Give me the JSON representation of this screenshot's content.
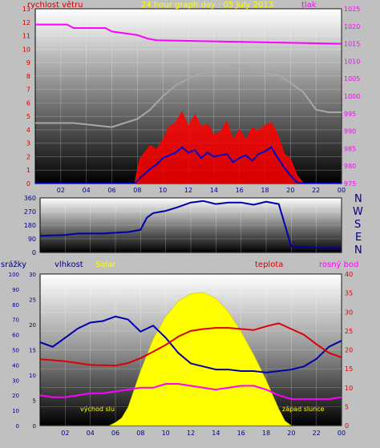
{
  "title": "24 hour graph day : 05 July 2013",
  "labels": {
    "wind_speed": "rychlost větru",
    "pressure": "tlak",
    "rain": "srážky",
    "humidity": "vlhkost",
    "solar": "Solar",
    "temperature": "teplota",
    "dewpoint": "rosný bod",
    "sunrise": "východ slu",
    "sunset": "západ slunce"
  },
  "compass": [
    "N",
    "W",
    "S",
    "E",
    "N"
  ],
  "colors": {
    "pressure": "#ff00ff",
    "gust": "#a8a8a8",
    "wind_max": "#ff0000",
    "wind_avg": "#0000cc",
    "direction": "#0000aa",
    "temperature": "#dd0000",
    "humidity": "#0000aa",
    "dewpoint": "#ff00ff",
    "solar": "#ffff00",
    "title": "#ffff00",
    "wind_label": "#cc0000",
    "rain_label": "#000080"
  },
  "chart_data": [
    {
      "type": "line",
      "name": "wind-pressure",
      "x_ticks": [
        "02",
        "04",
        "06",
        "08",
        "10",
        "12",
        "14",
        "16",
        "18",
        "20",
        "22",
        "00"
      ],
      "y_left_ticks": [
        "0",
        "1",
        "2",
        "3",
        "4",
        "5",
        "6",
        "7",
        "8",
        "9",
        "10",
        "11",
        "12",
        "13"
      ],
      "y_right_ticks": [
        "975",
        "980",
        "985",
        "990",
        "995",
        "1000",
        "1005",
        "1010",
        "1015",
        "1020",
        "1025"
      ],
      "ylim_left": [
        0,
        13
      ],
      "ylim_right": [
        975,
        1025
      ],
      "xlim": [
        0,
        24
      ],
      "series": [
        {
          "key": "pressure",
          "axis": "right",
          "x": [
            0,
            2.5,
            3,
            5.5,
            6,
            8,
            8.8,
            9.5,
            24
          ],
          "values": [
            1020.5,
            1020.5,
            1019.5,
            1019.5,
            1018.5,
            1017.5,
            1016.5,
            1016,
            1015
          ]
        },
        {
          "key": "gust",
          "axis": "left",
          "x": [
            0,
            1,
            3,
            6,
            7,
            8,
            9,
            10,
            11,
            12,
            13,
            14,
            15,
            16,
            17,
            18,
            19,
            20,
            21,
            22,
            23,
            24
          ],
          "values": [
            4.5,
            4.5,
            4.5,
            4.2,
            4.5,
            4.8,
            5.5,
            6.5,
            7.3,
            7.8,
            8.2,
            8.4,
            8.6,
            8.8,
            8.6,
            8.2,
            8.1,
            7.5,
            6.8,
            5.5,
            5.3,
            5.3
          ]
        },
        {
          "key": "wind_max",
          "axis": "left",
          "x": [
            0,
            7.8,
            8.2,
            9,
            9.5,
            10,
            10.5,
            11,
            11.5,
            12,
            12.5,
            13,
            13.5,
            14,
            14.5,
            15,
            15.5,
            16,
            16.5,
            17,
            17.5,
            18,
            18.5,
            19,
            19.5,
            20,
            20.5,
            21,
            24
          ],
          "values": [
            0,
            0,
            1.8,
            2.8,
            2.5,
            3.2,
            4.2,
            4.5,
            5.3,
            4.2,
            5.1,
            4.2,
            4.4,
            3.6,
            3.8,
            4.6,
            3.2,
            4.0,
            3.2,
            4.1,
            3.9,
            4.3,
            4.5,
            3.6,
            2.2,
            1.8,
            0.6,
            0,
            0
          ]
        },
        {
          "key": "wind_avg",
          "axis": "left",
          "x": [
            0,
            7.8,
            8.2,
            9,
            9.5,
            10,
            10.5,
            11,
            11.5,
            12,
            12.5,
            13,
            13.5,
            14,
            14.5,
            15,
            15.5,
            16,
            16.5,
            17,
            17.5,
            18,
            18.5,
            19,
            19.5,
            20,
            20.5,
            21,
            24
          ],
          "values": [
            0,
            0,
            0.4,
            1.1,
            1.4,
            1.9,
            2.1,
            2.3,
            2.7,
            2.3,
            2.5,
            1.9,
            2.3,
            2.0,
            2.1,
            2.2,
            1.6,
            1.9,
            2.1,
            1.7,
            2.2,
            2.4,
            2.7,
            1.9,
            1.2,
            0.6,
            0.1,
            0,
            0
          ]
        }
      ]
    },
    {
      "type": "line",
      "name": "wind-direction",
      "y_ticks": [
        "0",
        "90",
        "180",
        "270",
        "360"
      ],
      "ylim": [
        0,
        360
      ],
      "xlim": [
        0,
        24
      ],
      "series": [
        {
          "key": "direction",
          "x": [
            0,
            2,
            3,
            5,
            6,
            7,
            8,
            8.5,
            9,
            10,
            11,
            12,
            13,
            14,
            15,
            16,
            17,
            18,
            19,
            20,
            21,
            22,
            24
          ],
          "values": [
            110,
            115,
            125,
            125,
            130,
            135,
            150,
            230,
            260,
            275,
            300,
            330,
            340,
            320,
            330,
            330,
            315,
            335,
            320,
            40,
            35,
            30,
            30
          ]
        }
      ]
    },
    {
      "type": "area",
      "name": "temperature-humidity",
      "x_ticks": [
        "02",
        "04",
        "06",
        "08",
        "10",
        "12",
        "14",
        "16",
        "18",
        "20",
        "22",
        "00"
      ],
      "y_humidity_ticks": [
        "0",
        "10",
        "20",
        "30",
        "40",
        "50",
        "60",
        "70",
        "80",
        "90",
        "100"
      ],
      "y_rain_ticks": [
        "0",
        "5",
        "10",
        "15",
        "20",
        "25",
        "30"
      ],
      "y_right_ticks": [
        "0",
        "5",
        "10",
        "15",
        "20",
        "25",
        "30",
        "35",
        "40"
      ],
      "ylim_temp": [
        0,
        40
      ],
      "ylim_humidity": [
        0,
        100
      ],
      "xlim": [
        0,
        24
      ],
      "series": [
        {
          "key": "temperature",
          "x": [
            0,
            2,
            4,
            6,
            7,
            8,
            9,
            10,
            11,
            12,
            13,
            14,
            15,
            16,
            17,
            18,
            19,
            20,
            21,
            22,
            23,
            24
          ],
          "values": [
            17.5,
            17,
            16,
            15.8,
            16.5,
            17.8,
            19.5,
            21.3,
            23.5,
            25,
            25.5,
            25.8,
            25.8,
            25.5,
            25.2,
            26.2,
            27,
            25.5,
            24,
            21.5,
            19.2,
            18
          ]
        },
        {
          "key": "humidity",
          "x": [
            0,
            1,
            2,
            3,
            4,
            5,
            6,
            7,
            8,
            9,
            10,
            11,
            12,
            13,
            14,
            15,
            16,
            17,
            18,
            19,
            20,
            21,
            22,
            23,
            24
          ],
          "values": [
            55,
            52,
            58,
            64,
            68,
            69,
            72,
            70,
            62,
            66,
            58,
            48,
            41,
            39,
            37,
            37,
            36,
            36,
            35,
            36,
            37,
            39,
            44,
            52,
            56
          ]
        },
        {
          "key": "dewpoint",
          "x": [
            0,
            1,
            2,
            3,
            4,
            5,
            6,
            7,
            8,
            9,
            10,
            11,
            12,
            13,
            14,
            15,
            16,
            17,
            18,
            19,
            20,
            21,
            22,
            23,
            24
          ],
          "values": [
            8,
            7.5,
            7.5,
            8,
            8.5,
            8.5,
            9,
            9.5,
            10,
            10,
            11,
            11,
            10.5,
            10,
            9.5,
            10,
            10.5,
            10.5,
            9.5,
            8,
            7,
            7,
            7,
            7,
            7.5
          ]
        },
        {
          "key": "solar",
          "x": [
            5.5,
            6,
            6.5,
            7,
            8,
            9,
            10,
            11,
            12,
            13,
            14,
            15,
            16,
            17,
            18,
            19,
            19.5,
            20
          ],
          "values": [
            0,
            2,
            5,
            12,
            36,
            57,
            72,
            82,
            87,
            88,
            84,
            75,
            62,
            47,
            30,
            11,
            3,
            0
          ]
        }
      ]
    }
  ]
}
